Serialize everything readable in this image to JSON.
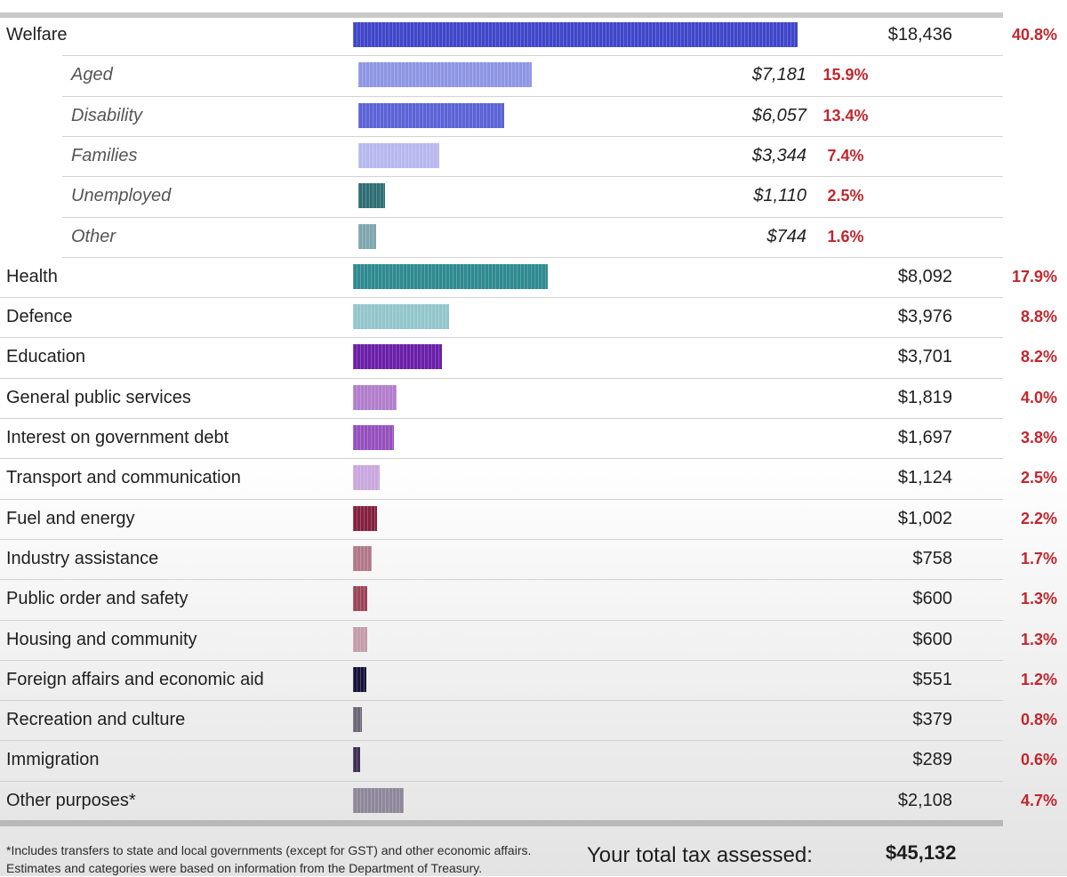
{
  "chart_data": {
    "type": "bar",
    "orientation": "horizontal",
    "title": "",
    "value_unit": "$",
    "categories": [
      {
        "label": "Welfare",
        "value_text": "$18,436",
        "value": 18436,
        "pct_text": "40.8%",
        "pct": 40.8,
        "color": "#3f46c9",
        "level": 0
      },
      {
        "label": "Aged",
        "value_text": "$7,181",
        "value": 7181,
        "pct_text": "15.9%",
        "pct": 15.9,
        "color": "#8e95e4",
        "level": 1
      },
      {
        "label": "Disability",
        "value_text": "$6,057",
        "value": 6057,
        "pct_text": "13.4%",
        "pct": 13.4,
        "color": "#5a63d6",
        "level": 1
      },
      {
        "label": "Families",
        "value_text": "$3,344",
        "value": 3344,
        "pct_text": "7.4%",
        "pct": 7.4,
        "color": "#b6b9ed",
        "level": 1
      },
      {
        "label": "Unemployed",
        "value_text": "$1,110",
        "value": 1110,
        "pct_text": "2.5%",
        "pct": 2.5,
        "color": "#2f6d74",
        "level": 1
      },
      {
        "label": "Other",
        "value_text": "$744",
        "value": 744,
        "pct_text": "1.6%",
        "pct": 1.6,
        "color": "#7fa6ae",
        "level": 1
      },
      {
        "label": "Health",
        "value_text": "$8,092",
        "value": 8092,
        "pct_text": "17.9%",
        "pct": 17.9,
        "color": "#2e8a90",
        "level": 0
      },
      {
        "label": "Defence",
        "value_text": "$3,976",
        "value": 3976,
        "pct_text": "8.8%",
        "pct": 8.8,
        "color": "#93c6cc",
        "level": 0
      },
      {
        "label": "Education",
        "value_text": "$3,701",
        "value": 3701,
        "pct_text": "8.2%",
        "pct": 8.2,
        "color": "#6a1fa8",
        "level": 0
      },
      {
        "label": "General public services",
        "value_text": "$1,819",
        "value": 1819,
        "pct_text": "4.0%",
        "pct": 4.0,
        "color": "#b27dcc",
        "level": 0
      },
      {
        "label": "Interest on government debt",
        "value_text": "$1,697",
        "value": 1697,
        "pct_text": "3.8%",
        "pct": 3.8,
        "color": "#9550bd",
        "level": 0
      },
      {
        "label": "Transport and communication",
        "value_text": "$1,124",
        "value": 1124,
        "pct_text": "2.5%",
        "pct": 2.5,
        "color": "#c9a7de",
        "level": 0
      },
      {
        "label": "Fuel and energy",
        "value_text": "$1,002",
        "value": 1002,
        "pct_text": "2.2%",
        "pct": 2.2,
        "color": "#84213f",
        "level": 0
      },
      {
        "label": "Industry assistance",
        "value_text": "$758",
        "value": 758,
        "pct_text": "1.7%",
        "pct": 1.7,
        "color": "#b07888",
        "level": 0
      },
      {
        "label": "Public order and safety",
        "value_text": "$600",
        "value": 600,
        "pct_text": "1.3%",
        "pct": 1.3,
        "color": "#9b4559",
        "level": 0
      },
      {
        "label": "Housing and community",
        "value_text": "$600",
        "value": 600,
        "pct_text": "1.3%",
        "pct": 1.3,
        "color": "#c39da9",
        "level": 0
      },
      {
        "label": "Foreign affairs and economic aid",
        "value_text": "$551",
        "value": 551,
        "pct_text": "1.2%",
        "pct": 1.2,
        "color": "#16123a",
        "level": 0
      },
      {
        "label": "Recreation and culture",
        "value_text": "$379",
        "value": 379,
        "pct_text": "0.8%",
        "pct": 0.8,
        "color": "#6b6577",
        "level": 0
      },
      {
        "label": "Immigration",
        "value_text": "$289",
        "value": 289,
        "pct_text": "0.6%",
        "pct": 0.6,
        "color": "#3f2f52",
        "level": 0
      },
      {
        "label": "Other purposes*",
        "value_text": "$2,108",
        "value": 2108,
        "pct_text": "4.7%",
        "pct": 4.7,
        "color": "#8d8799",
        "level": 0
      }
    ]
  },
  "footnote": {
    "line1": "*Includes transfers to state and local governments (except for GST) and other economic affairs.",
    "line2": "Estimates and categories were based on information from the Department of Treasury."
  },
  "total": {
    "label": "Your total tax assessed:",
    "value": "$45,132"
  }
}
